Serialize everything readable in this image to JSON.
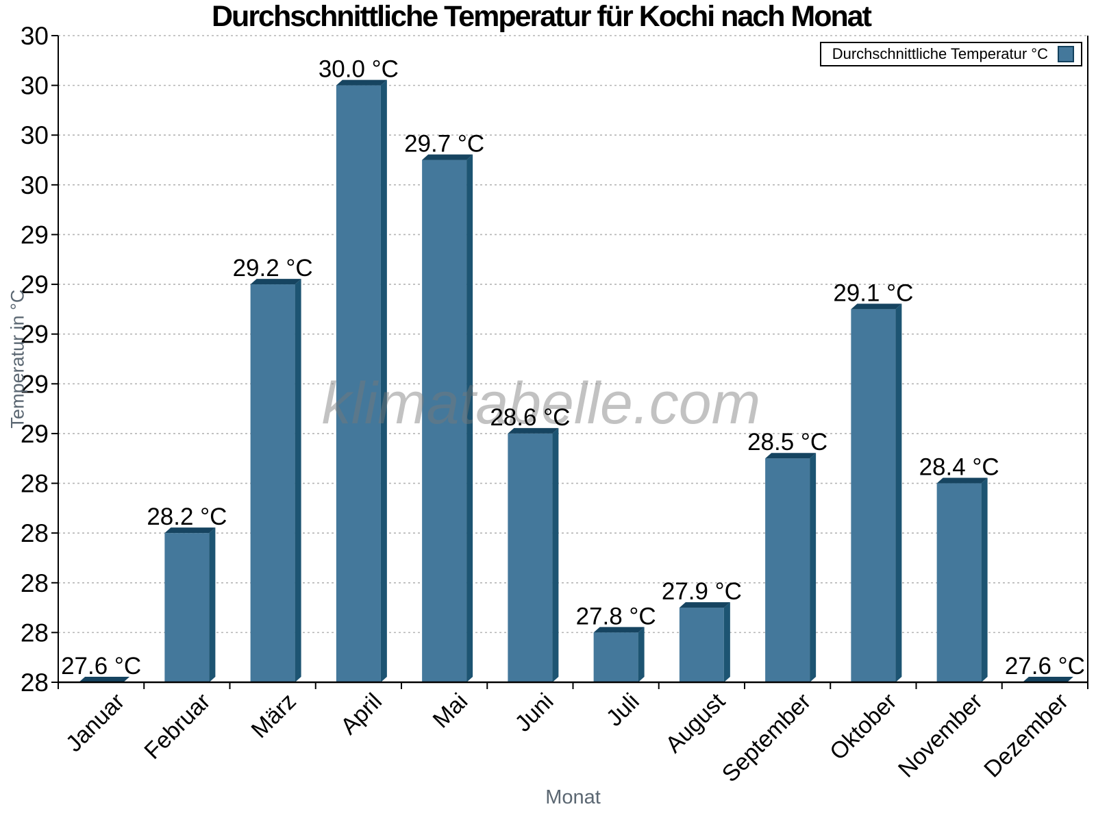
{
  "title": "Durchschnittliche Temperatur für Kochi nach Monat",
  "legend": {
    "label": "Durchschnittliche Temperatur °C",
    "position": "top-right"
  },
  "watermark": "klimatabelle.com",
  "axes": {
    "xlabel": "Monat",
    "ylabel": "Temperatur in °C"
  },
  "colors": {
    "bar": "#44789B",
    "bar_top": "#164460",
    "bar_side": "#1D5472",
    "grid": "#b4b4b4",
    "axis": "#000000",
    "muted_text": "#5b6772",
    "watermark": "rgba(120,120,120,0.45)"
  },
  "chart_data": {
    "type": "bar",
    "title": "Durchschnittliche Temperatur für Kochi nach Monat",
    "xlabel": "Monat",
    "ylabel": "Temperatur in °C",
    "series_name": "Durchschnittliche Temperatur °C",
    "categories": [
      "Januar",
      "Februar",
      "März",
      "April",
      "Mai",
      "Juni",
      "Juli",
      "August",
      "September",
      "Oktober",
      "November",
      "Dezember"
    ],
    "values": [
      27.6,
      28.2,
      29.2,
      30.0,
      29.7,
      28.6,
      27.8,
      27.9,
      28.5,
      29.1,
      28.4,
      27.6
    ],
    "bar_labels": [
      "27.6 °C",
      "28.2 °C",
      "29.2 °C",
      "30.0 °C",
      "29.7 °C",
      "28.6 °C",
      "27.8 °C",
      "27.9 °C",
      "28.5 °C",
      "29.1 °C",
      "28.4 °C",
      "27.6 °C"
    ],
    "ylim": [
      27.6,
      30.2
    ],
    "ytick_step": 0.2,
    "ytick_labels_top_to_bottom": [
      "30",
      "30",
      "30",
      "30",
      "29",
      "29",
      "29",
      "29",
      "29",
      "28",
      "28",
      "28",
      "28",
      "28"
    ],
    "grid": "horizontal-dotted",
    "legend_position": "top-right",
    "colors": {
      "bar": "#44789B",
      "bar_top": "#164460",
      "bar_side": "#1D5472"
    }
  }
}
